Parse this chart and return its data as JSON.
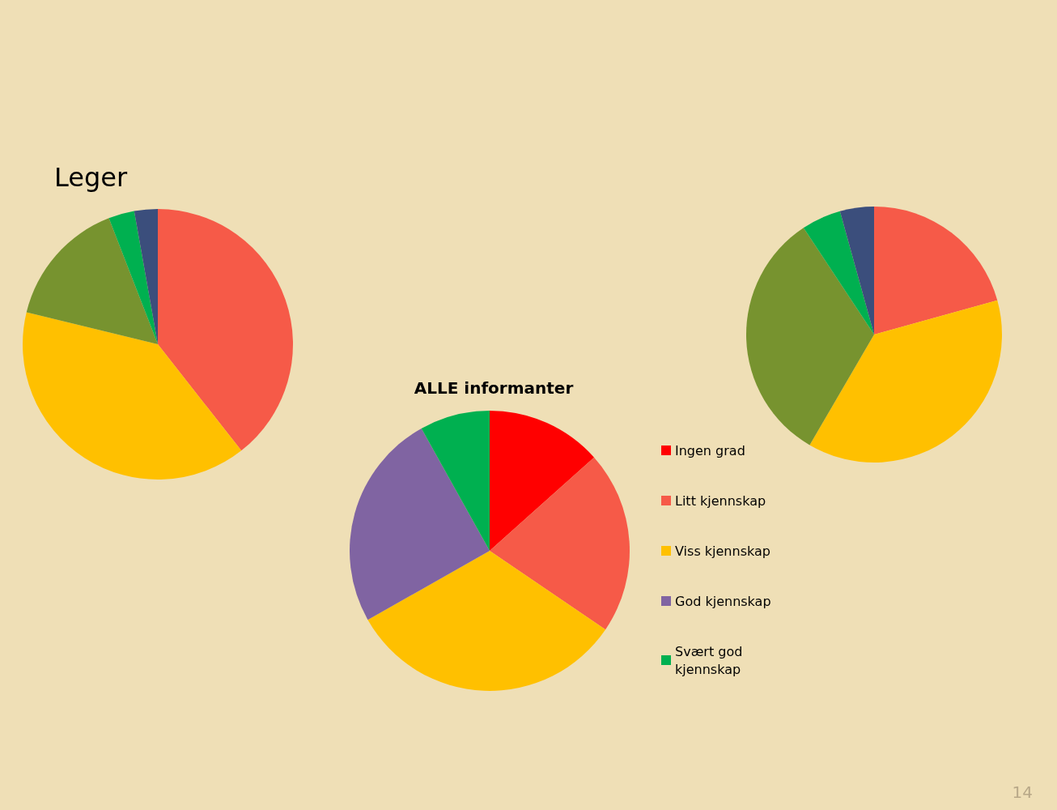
{
  "chart_data": [
    {
      "type": "pie",
      "title": "Leger",
      "categories": [
        null,
        null,
        null,
        null,
        null
      ],
      "values": [
        39.4,
        39.4,
        15.3,
        3.1,
        2.8
      ],
      "colors": [
        "#f65a48",
        "#ffc000",
        "#77932f",
        "#00b050",
        "#3b4e7c"
      ],
      "legend": false
    },
    {
      "type": "pie",
      "categories": [
        null,
        null,
        null,
        null,
        null
      ],
      "values": [
        20.7,
        37.7,
        32.3,
        5.0,
        4.3
      ],
      "colors": [
        "#f65a48",
        "#ffc000",
        "#77932f",
        "#00b050",
        "#3b4e7c"
      ],
      "legend": false,
      "annotations": [
        "14"
      ]
    },
    {
      "type": "pie",
      "title": "ALLE informanter",
      "categories": [
        "Ingen grad",
        "Litt kjennskap",
        "Viss kjennskap",
        "God kjennskap",
        "Svært god kjennskap"
      ],
      "values": [
        13.4,
        21.1,
        32.3,
        25.1,
        8.1
      ],
      "colors": [
        "#ff0000",
        "#f65a48",
        "#ffc000",
        "#8064a2",
        "#00b050"
      ],
      "legend": "right"
    }
  ]
}
